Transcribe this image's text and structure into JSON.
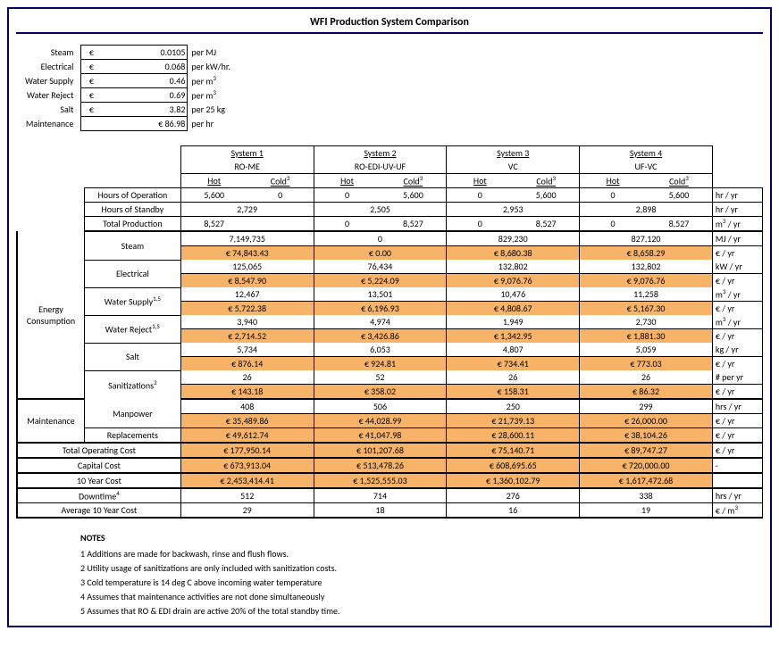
{
  "title": "WFI Production System Comparison",
  "currency": "€",
  "cost_inputs": [
    {
      "label": "Steam",
      "value": "0.0105",
      "unit": "per MJ"
    },
    {
      "label": "Electrical",
      "value": "0.068",
      "unit": "per kW/hr."
    },
    {
      "label": "Water Supply",
      "value": "0.46",
      "unit_html": "per m<sup>3</sup>"
    },
    {
      "label": "Water Reject",
      "value": "0.69",
      "unit_html": "per m<sup>3</sup>"
    },
    {
      "label": "Salt",
      "value": "3.82",
      "unit": "per 25 kg"
    },
    {
      "label": "Maintenance",
      "value": "€ 86.98",
      "unit": "per hr",
      "no_cur": true
    }
  ],
  "systems": [
    {
      "name": "System 1",
      "sub": "RO-ME"
    },
    {
      "name": "System 2",
      "sub": "RO-EDI-UV-UF"
    },
    {
      "name": "System 3",
      "sub": "VC"
    },
    {
      "name": "System 4",
      "sub": "UF-VC"
    }
  ],
  "hot_label": "Hot",
  "cold_label_html": "Cold<sup>3</sup>",
  "op_rows": {
    "hours_op": {
      "label": "Hours of Operation",
      "vals": [
        "5,600",
        "0",
        "0",
        "5,600",
        "0",
        "5,600",
        "0",
        "5,600"
      ],
      "unit": "hr / yr"
    },
    "hours_sb": {
      "label": "Hours of Standby",
      "vals_merged": [
        "2,729",
        "2,505",
        "2,953",
        "2,898"
      ],
      "unit": "hr / yr"
    },
    "total_prod": {
      "label": "Total Production",
      "vals": [
        "8,527",
        "",
        "0",
        "8,527",
        "0",
        "8,527",
        "0",
        "8,527"
      ],
      "unit_html": "m<sup>3</sup> / yr"
    }
  },
  "energy": [
    {
      "label": "Steam",
      "r1_merged": [
        "7,149,735",
        "0",
        "829,230",
        "827,120"
      ],
      "unit1": "MJ / yr",
      "r2_merged": [
        "€ 74,843.43",
        "€ 0.00",
        "€ 8,680.38",
        "€ 8,658.29"
      ],
      "unit2": "€ / yr"
    },
    {
      "label": "Electrical",
      "r1_merged": [
        "125,065",
        "76,434",
        "132,802",
        "132,802"
      ],
      "unit1": "kW / yr",
      "r2_merged": [
        "€ 8,547.90",
        "€ 5,224.09",
        "€ 9,076.76",
        "€ 9,076.76"
      ],
      "unit2": "€ / yr"
    },
    {
      "label_html": "Water Supply<sup>1,5</sup>",
      "r1_merged": [
        "12,467",
        "13,501",
        "10,476",
        "11,258"
      ],
      "unit1_html": "m<sup>3</sup> / yr",
      "r2_merged": [
        "€ 5,722.38",
        "€ 6,196.93",
        "€ 4,808.67",
        "€ 5,167.30"
      ],
      "unit2": "€ / yr"
    },
    {
      "label_html": "Water Reject<sup>1,5</sup>",
      "r1_merged": [
        "3,940",
        "4,974",
        "1,949",
        "2,730"
      ],
      "unit1_html": "m<sup>3</sup> / yr",
      "r2_merged": [
        "€ 2,714.52",
        "€ 3,426.86",
        "€ 1,342.95",
        "€ 1,881.30"
      ],
      "unit2": "€ / yr"
    },
    {
      "label": "Salt",
      "r1_merged": [
        "5,734",
        "6,053",
        "4,807",
        "5,059"
      ],
      "unit1": "kg / yr",
      "r2_merged": [
        "€ 876.14",
        "€ 924.81",
        "€ 734.41",
        "€ 773.03"
      ],
      "unit2": "€ / yr"
    },
    {
      "label_html": "Sanitizations<sup>2</sup>",
      "r1_merged": [
        "26",
        "52",
        "26",
        "26"
      ],
      "unit1": "# per yr",
      "r2_merged": [
        "€ 143.18",
        "€ 358.02",
        "€ 158.31",
        "€ 86.32"
      ],
      "unit2": "€ / yr"
    }
  ],
  "maintenance": [
    {
      "label": "Manpower",
      "r1_merged": [
        "408",
        "506",
        "250",
        "299"
      ],
      "unit1": "hrs / yr",
      "r2_merged": [
        "€ 35,489.86",
        "€ 44,028.99",
        "€ 21,739.13",
        "€ 26,000.00"
      ],
      "unit2": "€ / yr"
    },
    {
      "label": "Replacements",
      "r2_merged": [
        "€ 49,612.74",
        "€ 41,047.98",
        "€ 28,600.11",
        "€ 38,104.26"
      ],
      "unit2": "€ / yr",
      "single": true
    }
  ],
  "totals": [
    {
      "label": "Total Operating Cost",
      "vals": [
        "€ 177,950.14",
        "€ 101,207.68",
        "€ 75,140.71",
        "€ 89,747.27"
      ],
      "unit": "€ / yr",
      "orange": true
    },
    {
      "label": "Capital Cost",
      "vals": [
        "€ 673,913.04",
        "€ 513,478.26",
        "€ 608,695.65",
        "€ 720,000.00"
      ],
      "unit": "-",
      "orange": true
    },
    {
      "label": "10 Year Cost",
      "vals": [
        "€ 2,453,414.41",
        "€ 1,525,555.03",
        "€ 1,360,102.79",
        "€ 1,617,472.68"
      ],
      "unit": "",
      "orange": true
    },
    {
      "label_html": "Downtime<sup>4</sup>",
      "vals": [
        "512",
        "714",
        "276",
        "338"
      ],
      "unit": "hrs / yr",
      "orange": false
    },
    {
      "label": "Average 10 Year Cost",
      "vals": [
        "29",
        "18",
        "16",
        "19"
      ],
      "unit_html": "€ / m<sup>3</sup>",
      "orange": false
    }
  ],
  "notes_header": "NOTES",
  "notes": [
    "1 Additions are made for backwash, rinse and flush flows.",
    "2 Utility usage of sanitizations are only included with sanitization costs.",
    "3 Cold temperature is 14 deg C above incoming water temperature",
    "4 Assumes that maintenance activities are not done simultaneously",
    "5 Assumes that RO & EDI drain are active 20% of the total standby time."
  ],
  "colors": {
    "orange": "#f7b469",
    "border": "#000066"
  }
}
